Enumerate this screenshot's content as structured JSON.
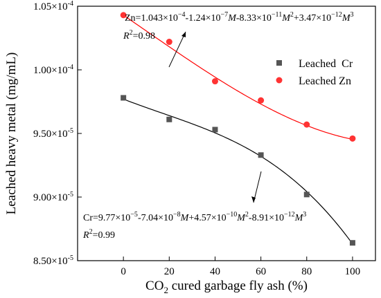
{
  "chart_data": {
    "type": "scatter",
    "xlabel_main": "CO",
    "xlabel_sub": "2",
    "xlabel_rest": " cured garbage fly ash (%)",
    "ylabel": "Leached heavy metal (mg/mL)",
    "xlim": [
      -20,
      110
    ],
    "ylim": [
      8.5e-05,
      0.000105
    ],
    "x_ticks": [
      0,
      20,
      40,
      60,
      80,
      100
    ],
    "x_tick_labels": [
      "0",
      "20",
      "40",
      "60",
      "80",
      "100"
    ],
    "y_ticks": [
      8.5e-05,
      9e-05,
      9.5e-05,
      0.0001,
      0.000105
    ],
    "y_tick_labels": [
      "8.50×10",
      "9.00×10",
      "9.50×10",
      "1.00×10",
      "1.05×10"
    ],
    "y_tick_exponents": [
      "-5",
      "-5",
      "-5",
      "-4",
      "-4"
    ],
    "legend_position": "top-right",
    "series": [
      {
        "name": "Leached  Cr",
        "marker": "square",
        "color": "#555555",
        "fit_color": "#000000",
        "x": [
          0,
          20,
          40,
          60,
          80,
          100
        ],
        "y": [
          9.78e-05,
          9.61e-05,
          9.53e-05,
          9.33e-05,
          9.02e-05,
          8.64e-05
        ],
        "fit_coeffs": [
          9.77e-05,
          -7.04e-08,
          4.57e-10,
          -8.91e-12
        ]
      },
      {
        "name": "Leached Zn",
        "marker": "circle",
        "color": "#ff3333",
        "fit_color": "#ff0000",
        "x": [
          0,
          20,
          40,
          60,
          80,
          100
        ],
        "y": [
          0.0001043,
          0.0001022,
          9.91e-05,
          9.76e-05,
          9.57e-05,
          9.46e-05
        ],
        "fit_coeffs": [
          0.0001043,
          -1.24e-07,
          -8.33e-11,
          3.47e-12
        ]
      }
    ],
    "annotations": {
      "zn_equation": "Zn=1.043×10^-4-1.24×10^-7M-8.33×10^-11M^2+3.47×10^-12M^3",
      "zn_r2": "R2=0.98",
      "cr_equation": "Cr=9.77×10^-5-7.04×10^-8M+4.57×10^-10M^2-8.91×10^-12M^3",
      "cr_r2": "R2=0.99"
    }
  }
}
